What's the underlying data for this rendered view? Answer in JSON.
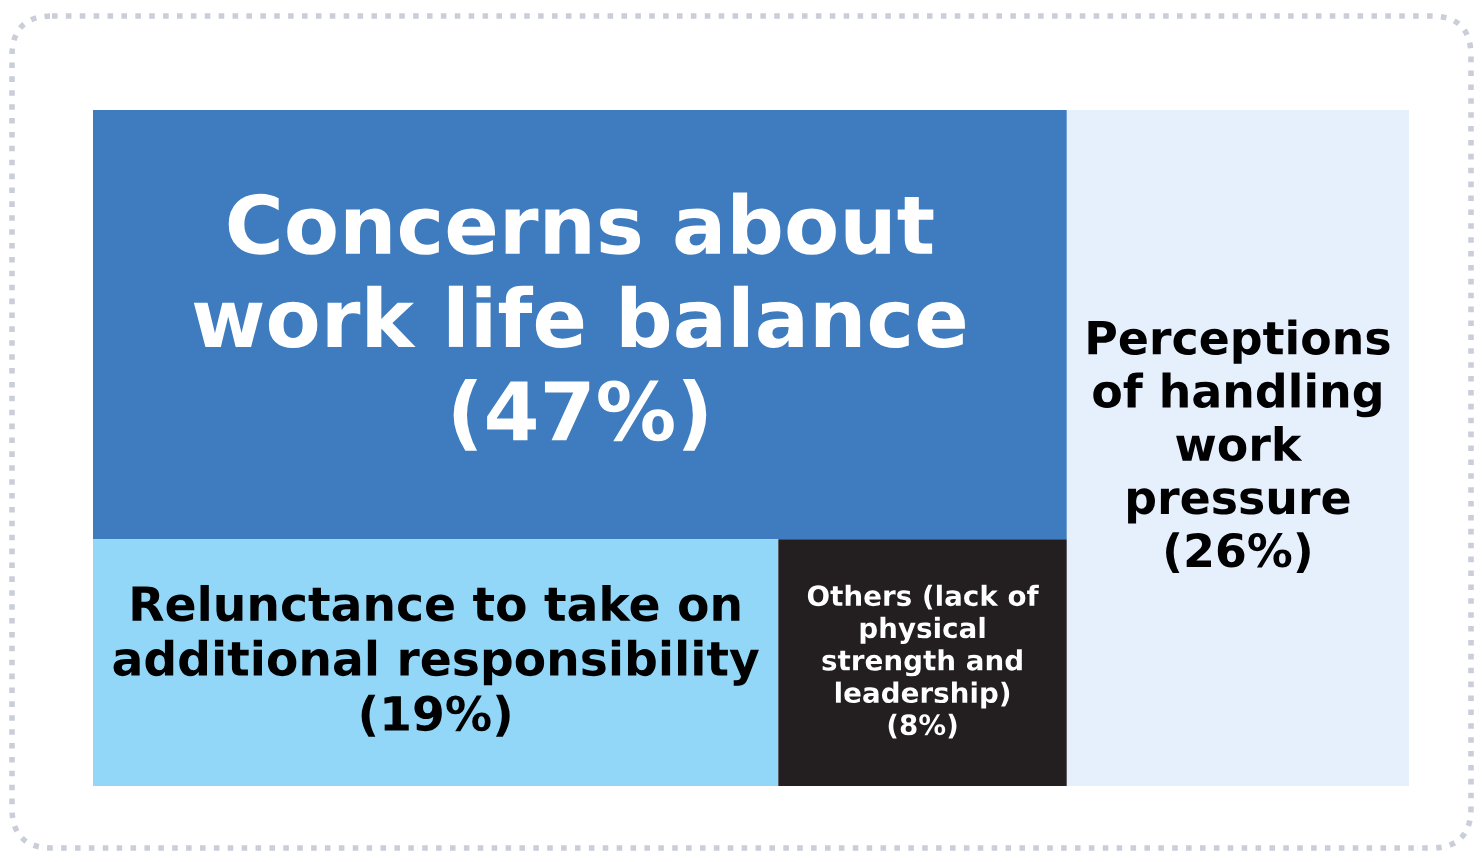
{
  "chart_data": {
    "type": "other",
    "categories": [
      "Concerns about work life balance",
      "Perceptions of handling work pressure",
      "Relunctance to take on additional responsibility",
      "Others (lack of physical strength and leadership)"
    ],
    "values": [
      47,
      26,
      19,
      8
    ],
    "value_labels": [
      "(47%)",
      "(26%)",
      "(19%)",
      "(8%)"
    ],
    "colors": [
      "#3f7cbf",
      "#e6f0fd",
      "#92d7f7",
      "#231f20"
    ]
  }
}
